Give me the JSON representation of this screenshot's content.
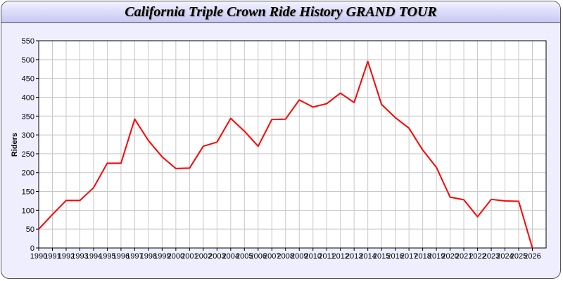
{
  "chart_data": {
    "type": "line",
    "title": "California Triple Crown Ride History GRAND TOUR",
    "xlabel": "",
    "ylabel": "Riders",
    "x": [
      1990,
      1991,
      1992,
      1993,
      1994,
      1995,
      1996,
      1997,
      1998,
      1999,
      2000,
      2001,
      2002,
      2003,
      2004,
      2005,
      2006,
      2007,
      2008,
      2009,
      2010,
      2011,
      2012,
      2013,
      2014,
      2015,
      2016,
      2017,
      2018,
      2019,
      2020,
      2021,
      2022,
      2023,
      2024,
      2025,
      2026
    ],
    "series": [
      {
        "values": [
          50,
          89,
          126,
          126,
          160,
          225,
          225,
          342,
          285,
          242,
          211,
          212,
          270,
          281,
          344,
          310,
          270,
          341,
          342,
          393,
          374,
          383,
          411,
          386,
          495,
          381,
          346,
          318,
          260,
          214,
          135,
          128,
          83,
          129,
          125,
          124,
          0
        ]
      }
    ],
    "xlim": [
      1990,
      2027
    ],
    "ylim": [
      0,
      550
    ],
    "yticks": [
      0,
      50,
      100,
      150,
      200,
      250,
      300,
      350,
      400,
      450,
      500,
      550
    ],
    "grid": true,
    "line_color": "#ff0000",
    "background_color": "#eeeeff"
  }
}
